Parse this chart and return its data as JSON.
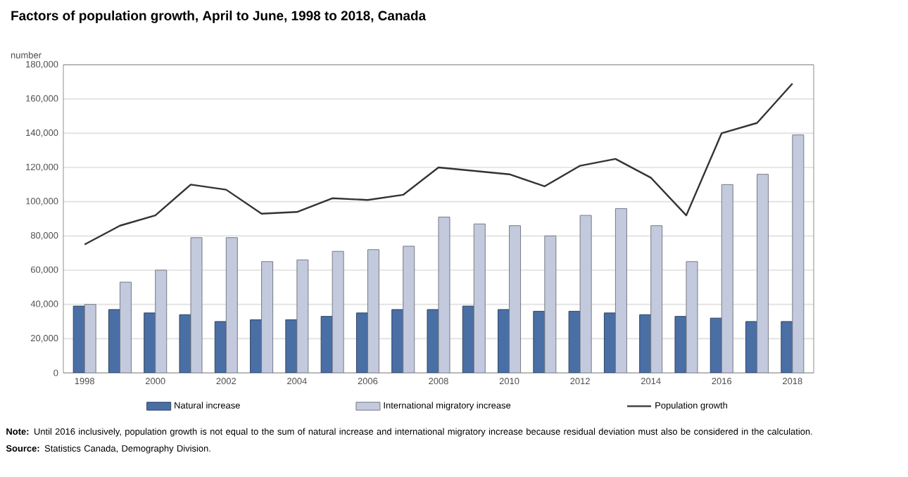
{
  "chart_data": {
    "type": "bar",
    "title": "Factors of population growth, April to June, 1998 to 2018, Canada",
    "ylabel": "number",
    "categories": [
      "1998",
      null,
      "2000",
      null,
      "2002",
      null,
      "2004",
      null,
      "2006",
      null,
      "2008",
      null,
      "2010",
      null,
      "2012",
      null,
      "2014",
      null,
      "2016",
      null,
      "2018"
    ],
    "series": [
      {
        "name": "Natural increase",
        "color": "#4a6fa5",
        "values": [
          39000,
          37000,
          35000,
          34000,
          30000,
          31000,
          31000,
          33000,
          35000,
          37000,
          37000,
          39000,
          37000,
          36000,
          36000,
          35000,
          34000,
          33000,
          32000,
          30000,
          30000
        ]
      },
      {
        "name": "International migratory increase",
        "color": "#c3cadd",
        "values": [
          40000,
          53000,
          60000,
          79000,
          79000,
          65000,
          66000,
          71000,
          72000,
          74000,
          91000,
          87000,
          86000,
          80000,
          92000,
          96000,
          86000,
          65000,
          110000,
          116000,
          139000
        ]
      },
      {
        "name": "Population growth",
        "type": "line",
        "color": "#333333",
        "values": [
          75000,
          86000,
          92000,
          110000,
          107000,
          93000,
          94000,
          102000,
          101000,
          104000,
          120000,
          118000,
          116000,
          109000,
          121000,
          125000,
          114000,
          92000,
          140000,
          146000,
          169000
        ]
      }
    ],
    "ylim": [
      0,
      180000
    ],
    "yticks": [
      0,
      {
        "value": 20000,
        "label": "20,000"
      },
      {
        "value": 40000,
        "label": "40,000"
      },
      {
        "value": 60000,
        "label": "60,000"
      },
      {
        "value": 80000,
        "label": "80,000"
      },
      {
        "value": 100000,
        "label": "100,000"
      },
      {
        "value": 120000,
        "label": "120,000"
      },
      {
        "value": 140000,
        "label": "140,000"
      },
      {
        "value": 160000,
        "label": "160,000"
      },
      {
        "value": 180000,
        "label": "180,000"
      }
    ],
    "grid": "y",
    "legend": "bottom",
    "annotations": [
      "**Note:** Until 2016 inclusively, population growth is not equal to the sum of natural increase and international migratory increase because residual deviation must also be considered in the calculation.",
      "**Source:** Statistics Canada, Demography Division."
    ]
  }
}
